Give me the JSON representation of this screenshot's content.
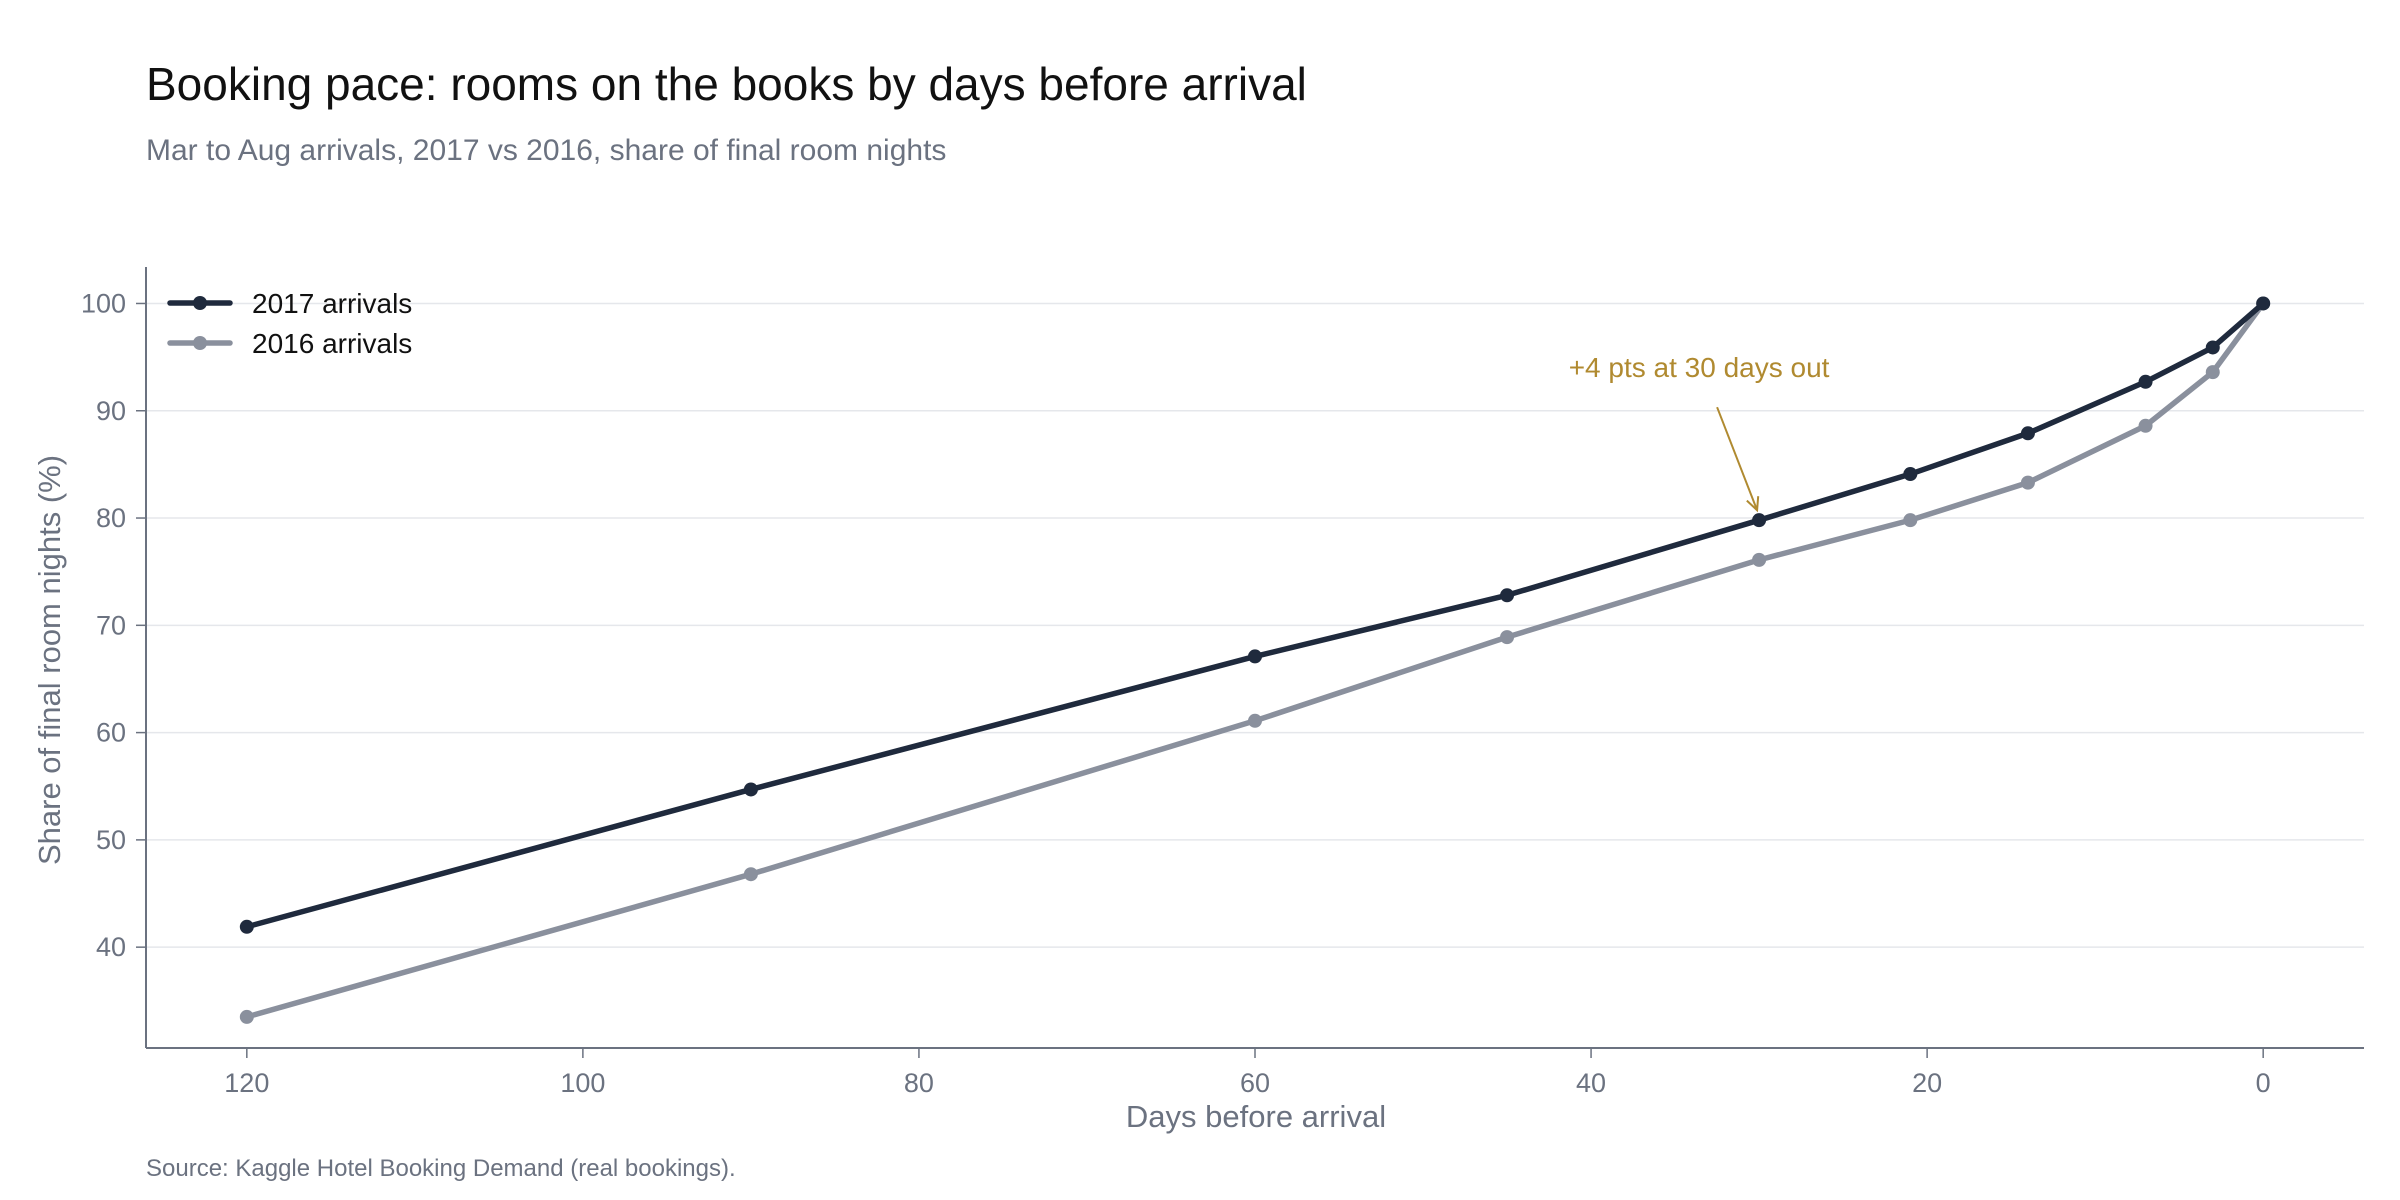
{
  "chart_data": {
    "type": "line",
    "title": "Booking pace: rooms on the books by days before arrival",
    "subtitle": "Mar to Aug arrivals, 2017 vs 2016, share of final room nights",
    "xlabel": "Days before arrival",
    "ylabel": "Share of final room nights (%)",
    "xlim": [
      126,
      -6
    ],
    "ylim": [
      30.6,
      103.4
    ],
    "x_reversed": true,
    "xticks": [
      120,
      100,
      80,
      60,
      40,
      20,
      0
    ],
    "yticks": [
      40,
      50,
      60,
      70,
      80,
      90,
      100
    ],
    "grid": "horizontal",
    "legend_position": "top-left",
    "series": [
      {
        "name": "2017 arrivals",
        "color": "#1f2a3d",
        "x": [
          120,
          90,
          60,
          45,
          30,
          21,
          14,
          7,
          3,
          0
        ],
        "y": [
          41.9,
          54.7,
          67.1,
          72.8,
          79.8,
          84.1,
          87.9,
          92.7,
          95.9,
          100
        ]
      },
      {
        "name": "2016 arrivals",
        "color": "#8a909d",
        "x": [
          120,
          90,
          60,
          45,
          30,
          21,
          14,
          7,
          3,
          0
        ],
        "y": [
          33.5,
          46.8,
          61.1,
          68.9,
          76.1,
          79.8,
          83.3,
          88.6,
          93.6,
          100
        ]
      }
    ],
    "annotations": [
      {
        "text": "+4 pts at 30 days out",
        "x": 30,
        "y": 79.8,
        "color": "#b08a30"
      }
    ]
  },
  "source": "Source: Kaggle Hotel Booking Demand (real bookings)."
}
